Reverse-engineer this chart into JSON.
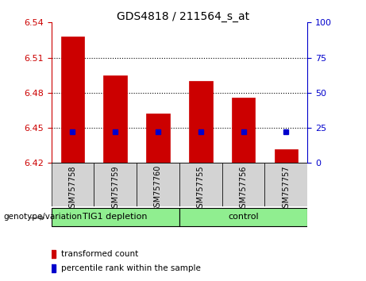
{
  "title": "GDS4818 / 211564_s_at",
  "samples": [
    "GSM757758",
    "GSM757759",
    "GSM757760",
    "GSM757755",
    "GSM757756",
    "GSM757757"
  ],
  "transformed_counts": [
    6.528,
    6.495,
    6.462,
    6.49,
    6.476,
    6.432
  ],
  "percentile_ranks_pct": [
    22,
    22,
    22,
    22,
    22,
    22
  ],
  "bar_bottom": 6.42,
  "ylim_left": [
    6.42,
    6.54
  ],
  "yticks_left": [
    6.42,
    6.45,
    6.48,
    6.51,
    6.54
  ],
  "ylim_right": [
    0,
    100
  ],
  "yticks_right": [
    0,
    25,
    50,
    75,
    100
  ],
  "bar_color": "#cc0000",
  "marker_color": "#0000cc",
  "group_color": "#90ee90",
  "sample_box_color": "#d3d3d3",
  "left_tick_color": "#cc0000",
  "right_tick_color": "#0000cc",
  "group_labels": [
    "TIG1 depletion",
    "control"
  ],
  "group_ranges": [
    [
      0,
      2
    ],
    [
      3,
      5
    ]
  ],
  "xlabel": "genotype/variation",
  "legend_items": [
    "transformed count",
    "percentile rank within the sample"
  ],
  "legend_colors": [
    "#cc0000",
    "#0000cc"
  ],
  "dotted_yticks": [
    6.45,
    6.48,
    6.51
  ],
  "title_fontsize": 10,
  "tick_fontsize": 8,
  "bar_width": 0.55
}
